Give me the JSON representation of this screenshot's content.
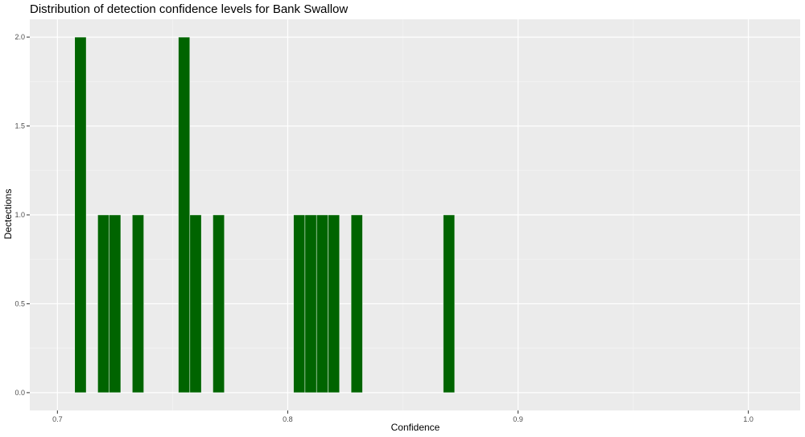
{
  "chart_data": {
    "type": "bar",
    "title": "Distribution of detection confidence levels for Bank Swallow",
    "xlabel": "Confidence",
    "ylabel": "Dectections",
    "xlim": [
      0.688,
      1.0225
    ],
    "ylim": [
      -0.1,
      2.1
    ],
    "x_ticks": [
      0.7,
      0.8,
      0.9,
      1.0
    ],
    "x_tick_labels": [
      "0.7",
      "0.8",
      "0.9",
      "1.0"
    ],
    "y_ticks": [
      0.0,
      0.5,
      1.0,
      1.5,
      2.0
    ],
    "y_tick_labels": [
      "0.0",
      "0.5",
      "1.0",
      "1.5",
      "2.0"
    ],
    "bin_width": 0.005,
    "x": [
      0.71,
      0.72,
      0.725,
      0.735,
      0.755,
      0.76,
      0.77,
      0.805,
      0.81,
      0.815,
      0.82,
      0.83,
      0.87
    ],
    "values": [
      2,
      1,
      1,
      1,
      2,
      1,
      1,
      1,
      1,
      1,
      1,
      1,
      1
    ],
    "grid": true,
    "legend": "none",
    "colors": {
      "bar_fill": "#006400",
      "bar_outline": "#ffffff",
      "panel_background": "#ebebeb",
      "grid_major": "#ffffff",
      "grid_minor": "#f5f5f5"
    }
  }
}
